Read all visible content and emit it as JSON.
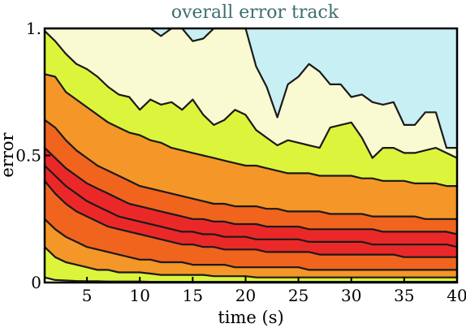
{
  "chart_data": {
    "type": "area",
    "title": "overall error track",
    "xlabel": "time (s)",
    "ylabel": "error",
    "xlim": [
      1,
      40
    ],
    "ylim": [
      0,
      1
    ],
    "x_ticks": [
      5,
      10,
      15,
      20,
      25,
      30,
      35,
      40
    ],
    "y_ticks": [
      0,
      0.5,
      1
    ],
    "y_tick_labels": [
      "0",
      "0.5",
      "1."
    ],
    "grid": false,
    "legend": "none",
    "background_color": "#c8f0f4",
    "x": [
      1,
      2,
      3,
      4,
      5,
      6,
      7,
      8,
      9,
      10,
      11,
      12,
      13,
      14,
      15,
      16,
      17,
      18,
      19,
      20,
      21,
      22,
      23,
      24,
      25,
      26,
      27,
      28,
      29,
      30,
      31,
      32,
      33,
      34,
      35,
      36,
      37,
      38,
      39,
      40
    ],
    "bands": [
      {
        "color": "#fafad2",
        "note": "outermost"
      },
      {
        "color": "#dcf53c"
      },
      {
        "color": "#f59628"
      },
      {
        "color": "#f0641e"
      },
      {
        "color": "#eb2828"
      },
      {
        "color": "#eb2828"
      },
      {
        "color": "#f0641e"
      },
      {
        "color": "#f59628"
      },
      {
        "color": "#dcf53c"
      },
      {
        "color": "#fafad2"
      }
    ],
    "series": [
      {
        "values": [
          1.0,
          1.0,
          1.0,
          1.0,
          1.0,
          1.0,
          1.0,
          1.0,
          1.0,
          1.0,
          1.0,
          0.97,
          1.0,
          1.0,
          0.95,
          0.96,
          1.0,
          1.0,
          1.0,
          1.0,
          0.85,
          0.77,
          0.65,
          0.78,
          0.81,
          0.86,
          0.83,
          0.78,
          0.78,
          0.73,
          0.74,
          0.71,
          0.7,
          0.71,
          0.62,
          0.62,
          0.67,
          0.67,
          0.53,
          0.53
        ]
      },
      {
        "values": [
          0.99,
          0.95,
          0.9,
          0.86,
          0.84,
          0.81,
          0.77,
          0.74,
          0.73,
          0.68,
          0.72,
          0.7,
          0.71,
          0.68,
          0.72,
          0.66,
          0.62,
          0.64,
          0.68,
          0.66,
          0.6,
          0.57,
          0.54,
          0.56,
          0.55,
          0.54,
          0.53,
          0.61,
          0.62,
          0.63,
          0.57,
          0.49,
          0.53,
          0.53,
          0.51,
          0.51,
          0.52,
          0.53,
          0.51,
          0.49
        ]
      },
      {
        "values": [
          0.82,
          0.81,
          0.75,
          0.72,
          0.69,
          0.66,
          0.63,
          0.61,
          0.59,
          0.58,
          0.56,
          0.55,
          0.53,
          0.52,
          0.51,
          0.5,
          0.49,
          0.48,
          0.47,
          0.46,
          0.46,
          0.45,
          0.44,
          0.43,
          0.43,
          0.43,
          0.42,
          0.42,
          0.42,
          0.42,
          0.41,
          0.41,
          0.4,
          0.4,
          0.4,
          0.39,
          0.39,
          0.39,
          0.38,
          0.38
        ]
      },
      {
        "values": [
          0.64,
          0.61,
          0.56,
          0.52,
          0.49,
          0.46,
          0.44,
          0.42,
          0.4,
          0.38,
          0.37,
          0.36,
          0.35,
          0.34,
          0.33,
          0.32,
          0.31,
          0.31,
          0.3,
          0.3,
          0.3,
          0.29,
          0.29,
          0.28,
          0.28,
          0.28,
          0.28,
          0.27,
          0.27,
          0.27,
          0.27,
          0.26,
          0.26,
          0.26,
          0.26,
          0.26,
          0.25,
          0.25,
          0.25,
          0.25
        ]
      },
      {
        "values": [
          0.53,
          0.49,
          0.45,
          0.42,
          0.39,
          0.37,
          0.35,
          0.33,
          0.31,
          0.3,
          0.29,
          0.28,
          0.27,
          0.26,
          0.25,
          0.25,
          0.24,
          0.24,
          0.23,
          0.23,
          0.23,
          0.22,
          0.22,
          0.22,
          0.22,
          0.21,
          0.21,
          0.21,
          0.21,
          0.21,
          0.21,
          0.21,
          0.2,
          0.2,
          0.2,
          0.2,
          0.2,
          0.2,
          0.2,
          0.19
        ]
      },
      {
        "values": [
          0.46,
          0.42,
          0.38,
          0.35,
          0.32,
          0.3,
          0.28,
          0.26,
          0.25,
          0.24,
          0.23,
          0.22,
          0.21,
          0.2,
          0.2,
          0.19,
          0.19,
          0.18,
          0.18,
          0.18,
          0.17,
          0.17,
          0.17,
          0.17,
          0.17,
          0.16,
          0.16,
          0.16,
          0.16,
          0.16,
          0.16,
          0.15,
          0.15,
          0.15,
          0.15,
          0.15,
          0.15,
          0.15,
          0.15,
          0.14
        ]
      },
      {
        "values": [
          0.4,
          0.35,
          0.31,
          0.28,
          0.26,
          0.24,
          0.22,
          0.21,
          0.2,
          0.19,
          0.18,
          0.17,
          0.16,
          0.15,
          0.15,
          0.14,
          0.14,
          0.13,
          0.13,
          0.13,
          0.13,
          0.12,
          0.12,
          0.12,
          0.12,
          0.12,
          0.11,
          0.11,
          0.11,
          0.11,
          0.11,
          0.11,
          0.11,
          0.11,
          0.1,
          0.1,
          0.1,
          0.1,
          0.1,
          0.1
        ]
      },
      {
        "values": [
          0.25,
          0.21,
          0.18,
          0.16,
          0.14,
          0.13,
          0.12,
          0.11,
          0.1,
          0.09,
          0.09,
          0.08,
          0.08,
          0.08,
          0.07,
          0.07,
          0.07,
          0.07,
          0.06,
          0.06,
          0.06,
          0.06,
          0.06,
          0.06,
          0.06,
          0.05,
          0.05,
          0.05,
          0.05,
          0.05,
          0.05,
          0.05,
          0.05,
          0.05,
          0.05,
          0.05,
          0.05,
          0.05,
          0.05,
          0.05
        ]
      },
      {
        "values": [
          0.14,
          0.1,
          0.08,
          0.07,
          0.06,
          0.05,
          0.05,
          0.04,
          0.04,
          0.04,
          0.035,
          0.03,
          0.03,
          0.03,
          0.03,
          0.03,
          0.025,
          0.025,
          0.025,
          0.025,
          0.02,
          0.02,
          0.02,
          0.02,
          0.02,
          0.02,
          0.02,
          0.02,
          0.02,
          0.02,
          0.02,
          0.02,
          0.02,
          0.02,
          0.02,
          0.02,
          0.02,
          0.02,
          0.02,
          0.02
        ]
      },
      {
        "values": [
          0.02,
          0.01,
          0.008,
          0.006,
          0.005,
          0.005,
          0.004,
          0.004,
          0.004,
          0.004,
          0.003,
          0.003,
          0.003,
          0.003,
          0.003,
          0.003,
          0.003,
          0.003,
          0.003,
          0.003,
          0.003,
          0.003,
          0.003,
          0.003,
          0.003,
          0.003,
          0.003,
          0.003,
          0.003,
          0.003,
          0.003,
          0.003,
          0.003,
          0.003,
          0.003,
          0.003,
          0.003,
          0.003,
          0.003,
          0.003
        ]
      }
    ]
  }
}
